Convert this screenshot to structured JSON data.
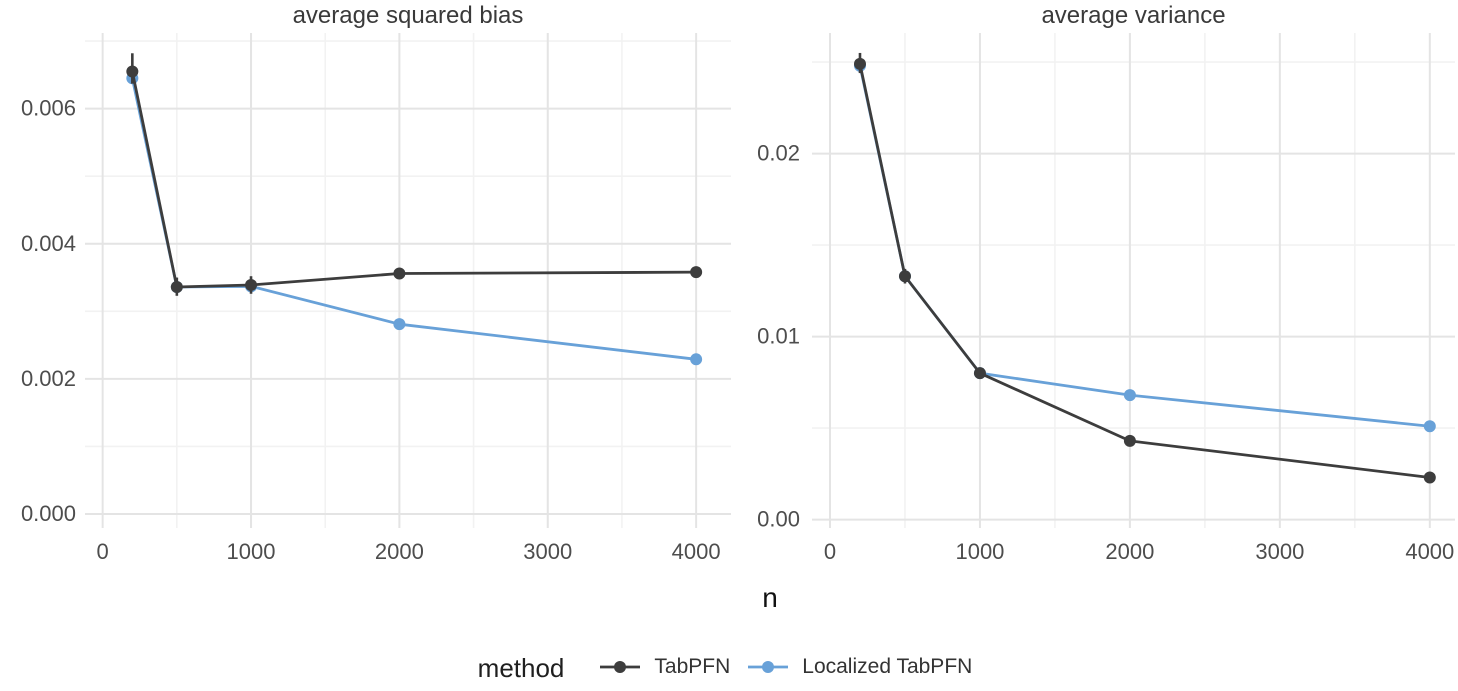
{
  "figure": {
    "xlabel": "n",
    "legend": {
      "title": "method",
      "items": [
        {
          "label": "TabPFN",
          "color_key": "tabpfn"
        },
        {
          "label": "Localized TabPFN",
          "color_key": "localized"
        }
      ],
      "position": "bottom-center"
    },
    "colors": {
      "tabpfn": "#3d3d3d",
      "localized": "#68a1d8",
      "grid_major": "#e4e4e4",
      "grid_minor": "#f2f2f2",
      "axis_text": "#4d4d4d",
      "title_text": "#3a3a3a",
      "background": "#ffffff"
    }
  },
  "chart_data": [
    {
      "type": "line",
      "title": "average squared bias",
      "xlabel": "n",
      "x": [
        200,
        500,
        1000,
        2000,
        4000
      ],
      "series": [
        {
          "name": "TabPFN",
          "color_key": "tabpfn",
          "values": [
            0.00655,
            0.00336,
            0.00339,
            0.00356,
            0.00358
          ],
          "errors": [
            {
              "lo": 0.00637,
              "hi": 0.00682
            },
            {
              "lo": 0.00323,
              "hi": 0.0035
            },
            {
              "lo": 0.00326,
              "hi": 0.00352
            },
            null,
            null
          ]
        },
        {
          "name": "Localized TabPFN",
          "color_key": "localized",
          "values": [
            0.00645,
            0.00336,
            0.00337,
            0.00281,
            0.00229
          ],
          "errors": [
            null,
            null,
            null,
            null,
            null
          ]
        }
      ],
      "x_ticks": [
        0,
        1000,
        2000,
        3000,
        4000
      ],
      "x_tick_labels": [
        "0",
        "1000",
        "2000",
        "3000",
        "4000"
      ],
      "x_minor": [
        500,
        1500,
        2500,
        3500
      ],
      "y_ticks": [
        0.0,
        0.002,
        0.004,
        0.006
      ],
      "y_tick_labels": [
        "0.000",
        "0.002",
        "0.004",
        "0.006"
      ],
      "y_minor": [
        0.001,
        0.003,
        0.005,
        0.007
      ],
      "xlim": [
        -119,
        4235
      ],
      "ylim": [
        -0.000207,
        0.00712
      ],
      "grid": true
    },
    {
      "type": "line",
      "title": "average variance",
      "xlabel": "n",
      "x": [
        200,
        500,
        1000,
        2000,
        4000
      ],
      "series": [
        {
          "name": "TabPFN",
          "color_key": "tabpfn",
          "values": [
            0.0249,
            0.0133,
            0.008,
            0.0043,
            0.0023
          ],
          "errors": [
            {
              "lo": 0.0244,
              "hi": 0.0255
            },
            {
              "lo": 0.0129,
              "hi": 0.0137
            },
            {
              "lo": 0.0077,
              "hi": 0.0083
            },
            null,
            null
          ]
        },
        {
          "name": "Localized TabPFN",
          "color_key": "localized",
          "values": [
            0.0248,
            0.0133,
            0.008,
            0.0068,
            0.0051
          ],
          "errors": [
            null,
            null,
            null,
            null,
            null
          ]
        }
      ],
      "x_ticks": [
        0,
        1000,
        2000,
        3000,
        4000
      ],
      "x_tick_labels": [
        "0",
        "1000",
        "2000",
        "3000",
        "4000"
      ],
      "x_minor": [
        500,
        1500,
        2500,
        3500
      ],
      "y_ticks": [
        0.0,
        0.01,
        0.02
      ],
      "y_tick_labels": [
        "0.00",
        "0.01",
        "0.02"
      ],
      "y_minor": [
        0.005,
        0.015,
        0.025
      ],
      "xlim": [
        -120,
        4168
      ],
      "ylim": [
        -0.00046,
        0.02659
      ],
      "grid": true
    }
  ]
}
